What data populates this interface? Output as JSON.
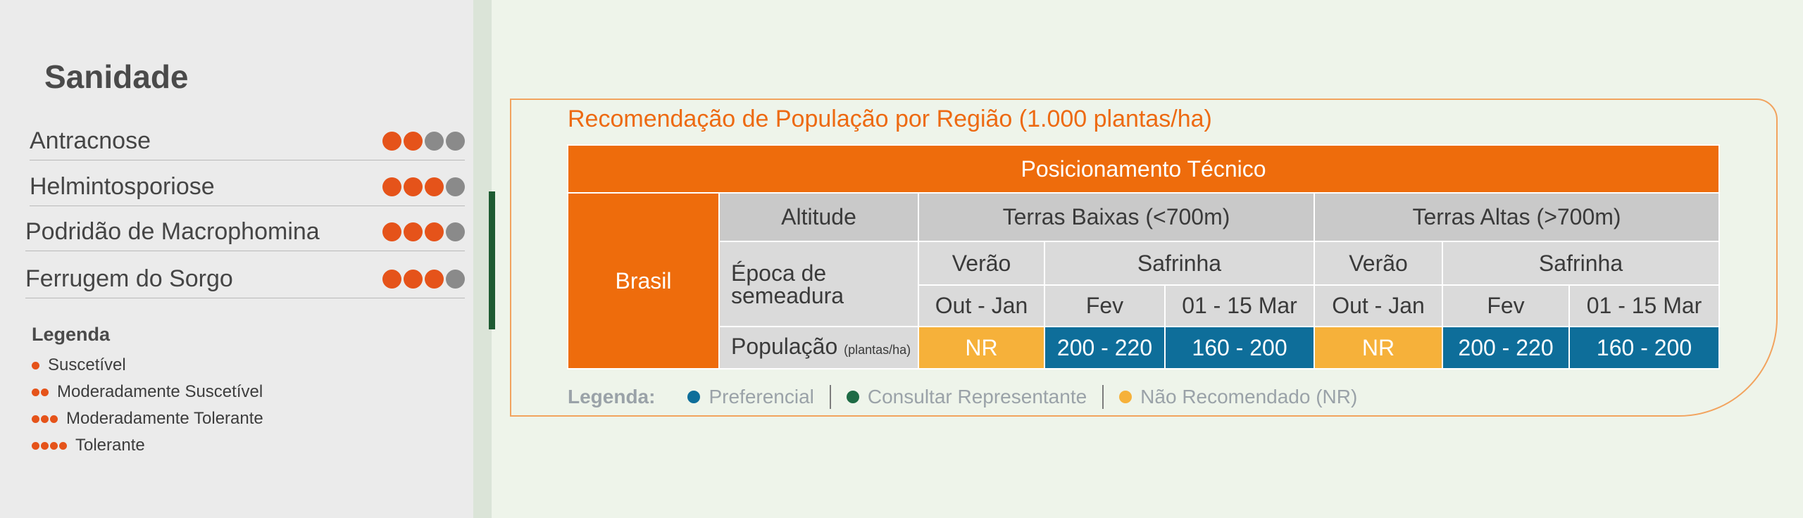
{
  "sanidade": {
    "title": "Sanidade",
    "items": [
      {
        "name": "Antracnose",
        "level": 2
      },
      {
        "name": "Helmintosporiose",
        "level": 3
      },
      {
        "name": "Podridão de Macrophomina",
        "level": 3
      },
      {
        "name": "Ferrugem do Sorgo",
        "level": 3
      }
    ],
    "legend": {
      "title": "Legenda",
      "items": [
        {
          "label": "Suscetível",
          "dots": 1
        },
        {
          "label": "Moderadamente Suscetível",
          "dots": 2
        },
        {
          "label": "Moderadamente Tolerante",
          "dots": 3
        },
        {
          "label": "Tolerante",
          "dots": 4
        }
      ]
    },
    "colors": {
      "active": "#e5531a",
      "inactive": "#8a8a8a"
    }
  },
  "populacao": {
    "title": "Recomendação de População por Região (1.000 plantas/ha)",
    "header": "Posicionamento Técnico",
    "region": "Brasil",
    "altitude_label": "Altitude",
    "terras_baixas": "Terras Baixas (<700m)",
    "terras_altas": "Terras Altas (>700m)",
    "epoca_label": "Época de semeadura",
    "verao": "Verão",
    "safrinha": "Safrinha",
    "periodo_verao": "Out - Jan",
    "periodo_fev": "Fev",
    "periodo_mar": "01 - 15 Mar",
    "populacao_label": "População",
    "populacao_unit": "(plantas/ha)",
    "values_baixas": [
      "NR",
      "200 - 220",
      "160 - 200"
    ],
    "values_altas": [
      "NR",
      "200 - 220",
      "160 - 200"
    ]
  },
  "legenda": {
    "title": "Legenda:",
    "items": [
      {
        "label": "Preferencial",
        "color": "#0e6e9a"
      },
      {
        "label": "Consultar Representante",
        "color": "#1e6b45"
      },
      {
        "label": "Não Recomendado (NR)",
        "color": "#f6b13a"
      }
    ]
  }
}
